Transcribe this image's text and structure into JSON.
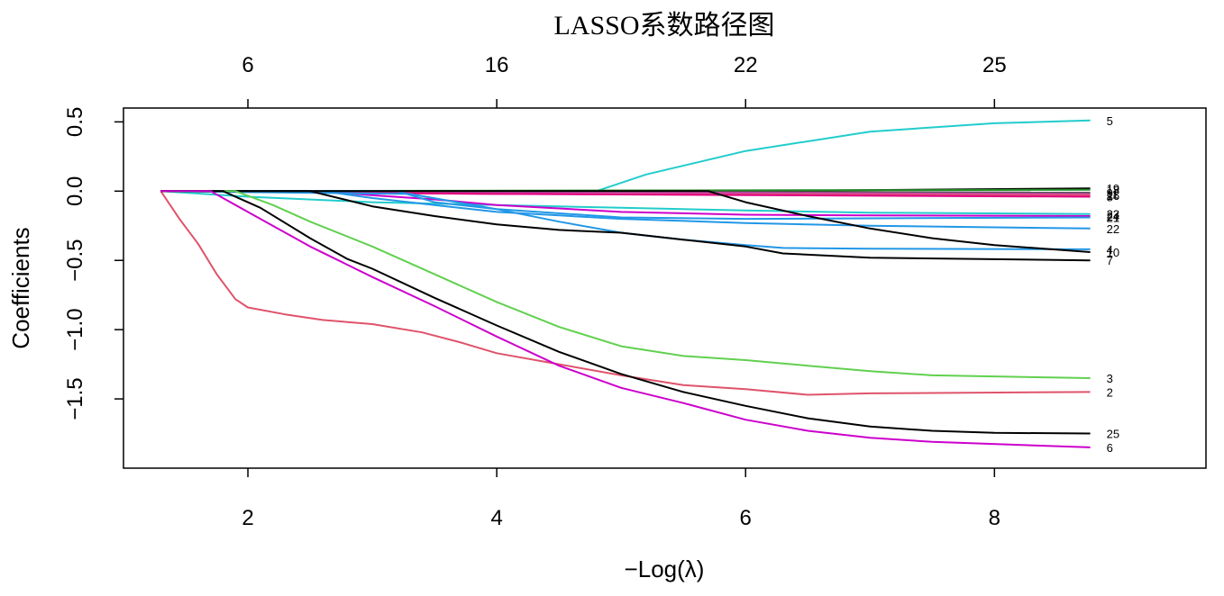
{
  "chart_data": {
    "type": "line",
    "title": "LASSO系数路径图",
    "xlabel": "−Log(λ)",
    "ylabel": "Coefficients",
    "xlim": [
      1.0,
      9.7
    ],
    "ylim": [
      -2.0,
      0.6
    ],
    "x_ticks": [
      2,
      4,
      6,
      8
    ],
    "y_ticks": [
      0.5,
      0.0,
      -0.5,
      -1.0,
      -1.5
    ],
    "y_tick_labels": [
      "0.5",
      "0.0",
      "−0.5",
      "−1.0",
      "−1.5"
    ],
    "top_axis": {
      "positions": [
        2,
        4,
        6,
        8
      ],
      "labels": [
        "6",
        "16",
        "22",
        "25"
      ]
    },
    "series": [
      {
        "label": "5",
        "color": "#22CCCC",
        "points": [
          [
            1.3,
            0
          ],
          [
            4.8,
            0
          ],
          [
            5.2,
            0.12
          ],
          [
            6.0,
            0.29
          ],
          [
            7.0,
            0.43
          ],
          [
            8.0,
            0.49
          ],
          [
            8.77,
            0.51
          ]
        ]
      },
      {
        "label": "19",
        "color": "#000000",
        "points": [
          [
            1.3,
            0
          ],
          [
            6.0,
            0.0
          ],
          [
            8.77,
            0.02
          ]
        ]
      },
      {
        "label": "18",
        "color": "#228B22",
        "points": [
          [
            1.3,
            0
          ],
          [
            8.77,
            0.01
          ]
        ]
      },
      {
        "label": "9",
        "color": "#555555",
        "points": [
          [
            1.3,
            0
          ],
          [
            8.77,
            -0.01
          ]
        ]
      },
      {
        "label": "11",
        "color": "#CC44AA",
        "points": [
          [
            1.3,
            0
          ],
          [
            8.77,
            -0.02
          ]
        ]
      },
      {
        "label": "16",
        "color": "#DF536B",
        "points": [
          [
            1.3,
            0
          ],
          [
            4.0,
            -0.02
          ],
          [
            8.77,
            -0.03
          ]
        ]
      },
      {
        "label": "8",
        "color": "#E00080",
        "points": [
          [
            1.3,
            0
          ],
          [
            2.5,
            -0.01
          ],
          [
            4.0,
            -0.02
          ],
          [
            8.77,
            -0.04
          ]
        ]
      },
      {
        "label": "23",
        "color": "#22CCCC",
        "points": [
          [
            1.3,
            0
          ],
          [
            2.0,
            -0.04
          ],
          [
            3.0,
            -0.08
          ],
          [
            4.0,
            -0.1
          ],
          [
            5.0,
            -0.12
          ],
          [
            6.0,
            -0.14
          ],
          [
            7.0,
            -0.155
          ],
          [
            8.77,
            -0.165
          ]
        ]
      },
      {
        "label": "24",
        "color": "#CC00CC",
        "points": [
          [
            1.3,
            0
          ],
          [
            2.6,
            0
          ],
          [
            3.0,
            -0.03
          ],
          [
            3.5,
            -0.06
          ],
          [
            4.0,
            -0.1
          ],
          [
            5.0,
            -0.15
          ],
          [
            6.0,
            -0.17
          ],
          [
            7.0,
            -0.175
          ],
          [
            8.77,
            -0.18
          ]
        ]
      },
      {
        "label": "21",
        "color": "#2297E6",
        "points": [
          [
            1.3,
            0
          ],
          [
            3.2,
            0
          ],
          [
            3.5,
            -0.08
          ],
          [
            4.0,
            -0.13
          ],
          [
            5.0,
            -0.19
          ],
          [
            6.0,
            -0.2
          ],
          [
            8.77,
            -0.19
          ]
        ]
      },
      {
        "label": "22",
        "color": "#2297E6",
        "points": [
          [
            1.3,
            0
          ],
          [
            2.6,
            0
          ],
          [
            3.0,
            -0.05
          ],
          [
            3.5,
            -0.1
          ],
          [
            4.0,
            -0.15
          ],
          [
            5.0,
            -0.2
          ],
          [
            6.0,
            -0.23
          ],
          [
            7.0,
            -0.25
          ],
          [
            8.77,
            -0.27
          ]
        ]
      },
      {
        "label": "4",
        "color": "#2297E6",
        "points": [
          [
            1.3,
            0
          ],
          [
            3.3,
            -0.02
          ],
          [
            4.0,
            -0.13
          ],
          [
            4.5,
            -0.22
          ],
          [
            5.0,
            -0.3
          ],
          [
            5.5,
            -0.35
          ],
          [
            6.0,
            -0.39
          ],
          [
            6.3,
            -0.41
          ],
          [
            7.0,
            -0.415
          ],
          [
            8.77,
            -0.42
          ]
        ]
      },
      {
        "label": "10",
        "color": "#000000",
        "points": [
          [
            1.3,
            0
          ],
          [
            5.7,
            0
          ],
          [
            6.0,
            -0.08
          ],
          [
            6.5,
            -0.18
          ],
          [
            7.0,
            -0.27
          ],
          [
            7.5,
            -0.34
          ],
          [
            8.0,
            -0.39
          ],
          [
            8.77,
            -0.44
          ]
        ]
      },
      {
        "label": "7",
        "color": "#000000",
        "points": [
          [
            1.3,
            0
          ],
          [
            2.5,
            0
          ],
          [
            3.0,
            -0.11
          ],
          [
            3.5,
            -0.18
          ],
          [
            4.0,
            -0.24
          ],
          [
            4.5,
            -0.28
          ],
          [
            5.0,
            -0.3
          ],
          [
            5.5,
            -0.35
          ],
          [
            6.0,
            -0.4
          ],
          [
            6.3,
            -0.45
          ],
          [
            7.0,
            -0.48
          ],
          [
            8.77,
            -0.5
          ]
        ]
      },
      {
        "label": "3",
        "color": "#61D04F",
        "points": [
          [
            1.3,
            0
          ],
          [
            1.9,
            0
          ],
          [
            2.2,
            -0.1
          ],
          [
            2.5,
            -0.22
          ],
          [
            3.0,
            -0.4
          ],
          [
            3.5,
            -0.6
          ],
          [
            4.0,
            -0.8
          ],
          [
            4.5,
            -0.98
          ],
          [
            5.0,
            -1.12
          ],
          [
            5.5,
            -1.19
          ],
          [
            6.0,
            -1.22
          ],
          [
            6.5,
            -1.26
          ],
          [
            7.0,
            -1.3
          ],
          [
            7.5,
            -1.33
          ],
          [
            8.77,
            -1.35
          ]
        ]
      },
      {
        "label": "2",
        "color": "#DF536B",
        "points": [
          [
            1.3,
            0
          ],
          [
            1.45,
            -0.2
          ],
          [
            1.6,
            -0.38
          ],
          [
            1.75,
            -0.6
          ],
          [
            1.9,
            -0.78
          ],
          [
            2.0,
            -0.84
          ],
          [
            2.3,
            -0.89
          ],
          [
            2.6,
            -0.93
          ],
          [
            3.0,
            -0.96
          ],
          [
            3.4,
            -1.02
          ],
          [
            3.7,
            -1.09
          ],
          [
            4.0,
            -1.17
          ],
          [
            4.5,
            -1.25
          ],
          [
            5.0,
            -1.33
          ],
          [
            5.5,
            -1.4
          ],
          [
            6.0,
            -1.43
          ],
          [
            6.5,
            -1.47
          ],
          [
            7.0,
            -1.46
          ],
          [
            8.77,
            -1.45
          ]
        ]
      },
      {
        "label": "25",
        "color": "#000000",
        "points": [
          [
            1.3,
            0
          ],
          [
            1.8,
            0
          ],
          [
            2.1,
            -0.12
          ],
          [
            2.5,
            -0.34
          ],
          [
            2.8,
            -0.49
          ],
          [
            3.0,
            -0.56
          ],
          [
            3.5,
            -0.77
          ],
          [
            4.0,
            -0.97
          ],
          [
            4.5,
            -1.16
          ],
          [
            5.0,
            -1.32
          ],
          [
            5.5,
            -1.45
          ],
          [
            6.0,
            -1.55
          ],
          [
            6.5,
            -1.64
          ],
          [
            7.0,
            -1.7
          ],
          [
            7.5,
            -1.73
          ],
          [
            8.0,
            -1.745
          ],
          [
            8.77,
            -1.75
          ]
        ]
      },
      {
        "label": "6",
        "color": "#CC00CC",
        "points": [
          [
            1.3,
            0
          ],
          [
            1.7,
            0
          ],
          [
            2.0,
            -0.15
          ],
          [
            2.5,
            -0.4
          ],
          [
            3.0,
            -0.62
          ],
          [
            3.5,
            -0.83
          ],
          [
            4.0,
            -1.05
          ],
          [
            4.5,
            -1.26
          ],
          [
            5.0,
            -1.42
          ],
          [
            5.5,
            -1.53
          ],
          [
            6.0,
            -1.65
          ],
          [
            6.5,
            -1.73
          ],
          [
            7.0,
            -1.78
          ],
          [
            7.5,
            -1.81
          ],
          [
            8.77,
            -1.85
          ]
        ]
      }
    ]
  }
}
